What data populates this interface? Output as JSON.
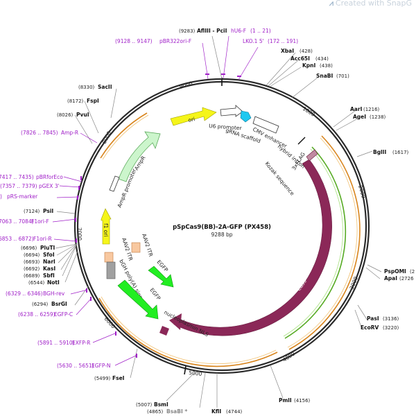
{
  "watermark": {
    "text": "Created with SnapG"
  },
  "plasmid": {
    "name": "pSpCas9(BB)-2A-GFP (PX458)",
    "length_label": "9288 bp",
    "length": 9288
  },
  "ticks": [
    "1000",
    "2000",
    "3000",
    "4000",
    "5000",
    "6000",
    "7000",
    "8000",
    "9000"
  ],
  "sites": [
    {
      "name": "AflIII - PciI",
      "pos": "(9283)"
    },
    {
      "name": "XbaI",
      "pos": "(428)"
    },
    {
      "name": "Acc65I",
      "pos": "(434)"
    },
    {
      "name": "KpnI",
      "pos": "(438)"
    },
    {
      "name": "SnaBI",
      "pos": "(701)"
    },
    {
      "name": "AarI",
      "pos": "(1216)"
    },
    {
      "name": "AgeI",
      "pos": "(1238)"
    },
    {
      "name": "BglII",
      "pos": "(1617)"
    },
    {
      "name": "PspOMI",
      "pos": "(2"
    },
    {
      "name": "ApaI",
      "pos": "(2726"
    },
    {
      "name": "PasI",
      "pos": "(3136)"
    },
    {
      "name": "EcoRV",
      "pos": "(3220)"
    },
    {
      "name": "PmlI",
      "pos": "(4156)"
    },
    {
      "name": "KflI",
      "pos": "(4744)"
    },
    {
      "name": "BsaBI *",
      "pos": "(4865)"
    },
    {
      "name": "BsmI",
      "pos": "(5007)"
    },
    {
      "name": "FseI",
      "pos": "(5499)"
    },
    {
      "name": "BsrGI",
      "pos": "(6294)"
    },
    {
      "name": "NotI",
      "pos": "(6544)"
    },
    {
      "name": "SbfI",
      "pos": "(6689)"
    },
    {
      "name": "KasI",
      "pos": "(6692)"
    },
    {
      "name": "NarI",
      "pos": "(6693)"
    },
    {
      "name": "SfoI",
      "pos": "(6694)"
    },
    {
      "name": "PluTI",
      "pos": "(6696)"
    },
    {
      "name": "PsiI",
      "pos": "(7124)"
    },
    {
      "name": "PvuI",
      "pos": "(8026)"
    },
    {
      "name": "FspI",
      "pos": "(8172)"
    },
    {
      "name": "SacII",
      "pos": "(8330)"
    }
  ],
  "primers": [
    {
      "name": "pBR322ori-F",
      "range": "(9128 .. 9147)"
    },
    {
      "name": "hU6-F",
      "range": "(1 .. 21)"
    },
    {
      "name": "LKO.1 5'",
      "range": "(172 .. 191)"
    },
    {
      "name": "Amp-R",
      "range": "(7826 .. 7845)"
    },
    {
      "name": "pBRforEco",
      "range": "7417 .. 7435)"
    },
    {
      "name": "pGEX 3'",
      "range": "(7357 .. 7379)"
    },
    {
      "name": "pRS-marker",
      "range": ")"
    },
    {
      "name": "F1ori-F",
      "range": "7063 .. 7084)"
    },
    {
      "name": "F1ori-R",
      "range": "6853 .. 6872)"
    },
    {
      "name": "BGH-rev",
      "range": "(6329 .. 6346)"
    },
    {
      "name": "EGFP-C",
      "range": "(6238 .. 6259)"
    },
    {
      "name": "EXFP-R",
      "range": "(5891 .. 5910)"
    },
    {
      "name": "EGFP-N",
      "range": "(5630 .. 5651)"
    }
  ],
  "features": {
    "ori": "ori",
    "u6_promoter": "U6 promoter",
    "grna_scaffold": "gRNA scaffold",
    "cmv_enhancer": "CMV enhancer",
    "hybrid_intron": "hybrid intron",
    "kozak": "Kozak sequence",
    "flag": "3xFLAG",
    "cas9": "Cas9",
    "nls": "nucleoplasmin NLS",
    "egfp_outer": "EGFP",
    "egfp_inner": "EGFP",
    "bgh": "bGH poly(A) signal",
    "aav2_itr_left": "AAV2 ITR",
    "aav2_itr_right": "AAV2 ITR",
    "f1_ori": "f1 ori",
    "ampr": "AmpR",
    "ampr_promoter": "AmpR promoter"
  },
  "colors": {
    "backbone": "#2b2b2b",
    "cas9": "#8b2858",
    "egfp": "#22ee22",
    "ori": "#f5f51a",
    "f1ori": "#f5f51a",
    "ampr": "#ccf5cc",
    "primer": "#a020c8",
    "orf_orange": "#d8841c",
    "orf_green": "#55aa22"
  }
}
